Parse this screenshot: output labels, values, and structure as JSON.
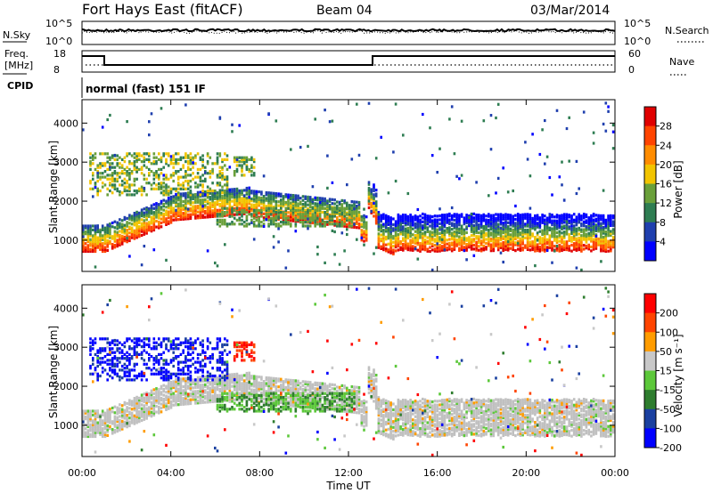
{
  "header": {
    "station": "Fort Hays East (fitACF)",
    "beam": "Beam 04",
    "date": "03/Mar/2014"
  },
  "panels": {
    "nsky_label": "N.Sky",
    "nsearch_label": "N.Search",
    "nsky_ticks": [
      "10^5",
      "10^0"
    ],
    "nsearch_ticks": [
      "10^5",
      "10^0"
    ],
    "freq_label_line1": "Freq.",
    "freq_label_line2": "[MHz]",
    "freq_ticks": [
      "18",
      "8"
    ],
    "nave_label": "Nave",
    "nave_ticks": [
      "60",
      "0"
    ],
    "cpid_label": "CPID",
    "cpid_value": "normal (fast) 151 IF"
  },
  "colors": {
    "power_scale": [
      "#0000ff",
      "#1f3fae",
      "#2e7d52",
      "#6aa03a",
      "#f2c400",
      "#ff8c00",
      "#ff4400",
      "#e00000"
    ],
    "velocity_scale": [
      "#0000ff",
      "#1a40a0",
      "#2e7d2e",
      "#5cc83a",
      "#c8c8c8",
      "#ff9c00",
      "#ff4400",
      "#ff0000"
    ],
    "ground_scatter": "#c0c0c0"
  },
  "chart_data": [
    {
      "type": "heatmap",
      "name": "power",
      "x_ticks": [
        "00:00",
        "04:00",
        "08:00",
        "12:00",
        "16:00",
        "20:00",
        "00:00"
      ],
      "xlim_hours": [
        0,
        24
      ],
      "ylabel": "Slant Range [km]",
      "y_ticks": [
        1000,
        2000,
        3000,
        4000
      ],
      "ylim": [
        200,
        4600
      ],
      "colorbar_label": "Power [dB]",
      "colorbar_ticks": [
        4,
        8,
        12,
        16,
        20,
        24,
        28
      ],
      "colorbar_range": [
        0,
        32
      ]
    },
    {
      "type": "heatmap",
      "name": "velocity",
      "x_ticks": [
        "00:00",
        "04:00",
        "08:00",
        "12:00",
        "16:00",
        "20:00",
        "00:00"
      ],
      "xlim_hours": [
        0,
        24
      ],
      "xlabel": "Time UT",
      "ylabel": "Slant Range [km]",
      "y_ticks": [
        1000,
        2000,
        3000,
        4000
      ],
      "ylim": [
        200,
        4600
      ],
      "colorbar_label": "Velocity [m s⁻¹]",
      "colorbar_ticks": [
        "200",
        "100",
        "50",
        "15",
        "-15",
        "-50",
        "-100",
        "-200"
      ]
    }
  ]
}
